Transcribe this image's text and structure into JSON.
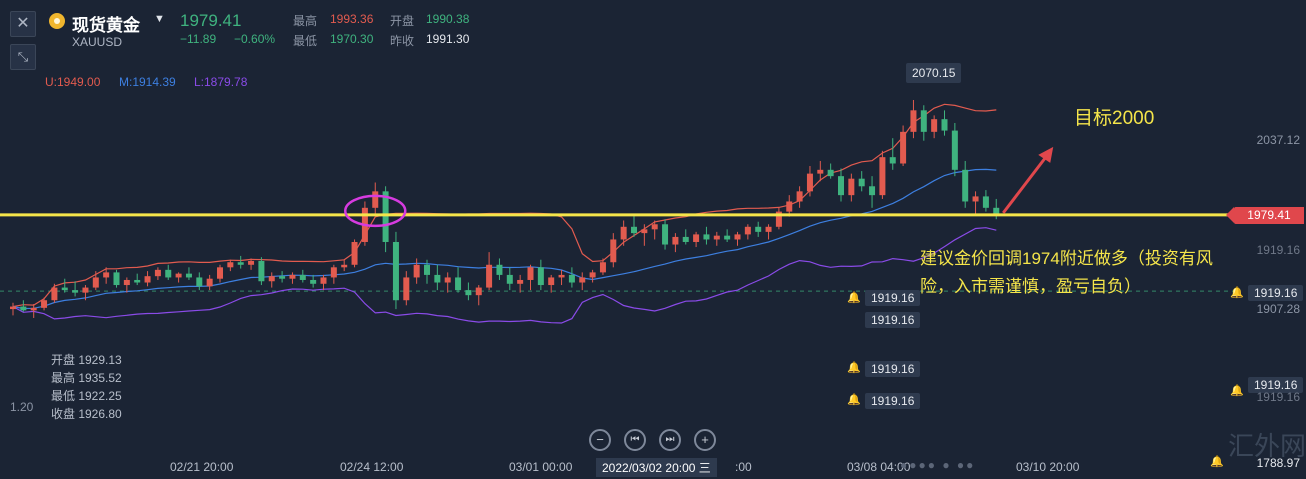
{
  "header": {
    "close_icon": "close-icon",
    "shrink_icon": "shrink-icon",
    "instrument_icon": "gold-coin-icon",
    "instrument_name": "现货黄金",
    "dropdown_icon": "caret-down-icon",
    "symbol": "XAUUSD",
    "last_price": "1979.41",
    "change": "−11.89",
    "change_pct": "−0.60%",
    "high_label": "最高",
    "high_value": "1993.36",
    "low_label": "最低",
    "low_value": "1970.30",
    "open_label": "开盘",
    "open_value": "1990.38",
    "prev_close_label": "昨收",
    "prev_close_value": "1991.30"
  },
  "bollinger": {
    "upper": "U:1949.00",
    "middle": "M:1914.39",
    "lower": "L:1879.78"
  },
  "hover_ohlc": {
    "open": "开盘 1929.13",
    "high": "最高 1935.52",
    "low": "最低 1922.25",
    "close": "收盘 1926.80"
  },
  "left_edge_value": "1.20",
  "annotations": {
    "target": "目标2000",
    "note_line1": "建议金价回调1974附近做多（投资有风",
    "note_line2": "险，入市需谨慎，盈亏自负）",
    "peak_label": "2070.15"
  },
  "alerts": {
    "value": "1919.16",
    "count": 6
  },
  "price_axis": {
    "ticks": [
      "2037.12",
      "1907.28",
      "1788.97"
    ],
    "current": "1979.41",
    "clipped_top": "1919.16",
    "clipped_bottom": "1919.16"
  },
  "time_axis": {
    "ticks": [
      "02/21 20:00",
      "02/24 12:00",
      "03/01 00:00",
      "03/08 04:00",
      "03/10 20:00"
    ],
    "partial_tick": ":00",
    "cursor_date": "2022/03/02 20:00 三"
  },
  "nav_buttons": [
    "zoom-out",
    "scroll-start",
    "scroll-end",
    "zoom-in"
  ],
  "nav_glyphs": [
    "−",
    "⏮",
    "⏭",
    "+"
  ],
  "watermark": "汇外网",
  "colors": {
    "background": "#1b2434",
    "up": "#e25b4f",
    "down": "#3fb37f",
    "upper_band": "#e25b4f",
    "middle_band": "#3d7fe0",
    "lower_band": "#8a4be8",
    "support_line": "#f5e54a",
    "highlight_circle": "#d63be0",
    "arrow": "#e0474c"
  },
  "chart_data": {
    "type": "candlestick",
    "price_scale": {
      "min": 1788.97,
      "max": 2070.15
    },
    "support_level": 1979.41,
    "reference_dashed": 1919.16,
    "candles": [
      [
        1905,
        1910,
        1900,
        1907
      ],
      [
        1907,
        1912,
        1903,
        1904
      ],
      [
        1904,
        1909,
        1898,
        1906
      ],
      [
        1906,
        1914,
        1904,
        1912
      ],
      [
        1912,
        1925,
        1910,
        1922
      ],
      [
        1922,
        1929,
        1918,
        1920
      ],
      [
        1920,
        1927,
        1915,
        1918
      ],
      [
        1918,
        1924,
        1912,
        1922
      ],
      [
        1922,
        1935,
        1920,
        1930
      ],
      [
        1930,
        1938,
        1925,
        1934
      ],
      [
        1934,
        1936,
        1922,
        1924
      ],
      [
        1924,
        1930,
        1918,
        1928
      ],
      [
        1928,
        1933,
        1924,
        1926
      ],
      [
        1926,
        1935,
        1923,
        1931
      ],
      [
        1931,
        1938,
        1928,
        1936
      ],
      [
        1936,
        1940,
        1928,
        1930
      ],
      [
        1930,
        1934,
        1926,
        1933
      ],
      [
        1933,
        1938,
        1928,
        1930
      ],
      [
        1930,
        1934,
        1920,
        1923
      ],
      [
        1923,
        1932,
        1920,
        1929
      ],
      [
        1929,
        1940,
        1926,
        1938
      ],
      [
        1938,
        1944,
        1935,
        1942
      ],
      [
        1942,
        1947,
        1937,
        1940
      ],
      [
        1940,
        1945,
        1936,
        1943
      ],
      [
        1943,
        1946,
        1924,
        1927
      ],
      [
        1927,
        1934,
        1922,
        1931
      ],
      [
        1931,
        1935,
        1926,
        1929
      ],
      [
        1929,
        1934,
        1925,
        1932
      ],
      [
        1932,
        1936,
        1926,
        1928
      ],
      [
        1928,
        1932,
        1922,
        1925
      ],
      [
        1925,
        1932,
        1920,
        1930
      ],
      [
        1930,
        1940,
        1925,
        1938
      ],
      [
        1938,
        1944,
        1935,
        1940
      ],
      [
        1940,
        1960,
        1938,
        1958
      ],
      [
        1958,
        1990,
        1955,
        1985
      ],
      [
        1985,
        2005,
        1980,
        1998
      ],
      [
        1998,
        2002,
        1950,
        1958
      ],
      [
        1958,
        1966,
        1905,
        1912
      ],
      [
        1912,
        1935,
        1908,
        1930
      ],
      [
        1930,
        1945,
        1925,
        1940
      ],
      [
        1940,
        1944,
        1925,
        1932
      ],
      [
        1932,
        1940,
        1920,
        1926
      ],
      [
        1926,
        1934,
        1918,
        1930
      ],
      [
        1930,
        1938,
        1918,
        1920
      ],
      [
        1920,
        1926,
        1912,
        1916
      ],
      [
        1916,
        1924,
        1908,
        1922
      ],
      [
        1922,
        1950,
        1920,
        1940
      ],
      [
        1940,
        1945,
        1928,
        1932
      ],
      [
        1932,
        1938,
        1920,
        1925
      ],
      [
        1925,
        1932,
        1918,
        1928
      ],
      [
        1928,
        1940,
        1920,
        1938
      ],
      [
        1938,
        1944,
        1920,
        1924
      ],
      [
        1924,
        1932,
        1918,
        1930
      ],
      [
        1930,
        1936,
        1924,
        1932
      ],
      [
        1932,
        1938,
        1922,
        1926
      ],
      [
        1926,
        1934,
        1920,
        1930
      ],
      [
        1930,
        1936,
        1926,
        1934
      ],
      [
        1934,
        1945,
        1932,
        1942
      ],
      [
        1942,
        1965,
        1938,
        1960
      ],
      [
        1960,
        1975,
        1955,
        1970
      ],
      [
        1970,
        1980,
        1962,
        1965
      ],
      [
        1965,
        1972,
        1955,
        1968
      ],
      [
        1968,
        1975,
        1960,
        1972
      ],
      [
        1972,
        1976,
        1952,
        1956
      ],
      [
        1956,
        1965,
        1950,
        1962
      ],
      [
        1962,
        1968,
        1956,
        1958
      ],
      [
        1958,
        1966,
        1954,
        1964
      ],
      [
        1964,
        1970,
        1956,
        1960
      ],
      [
        1960,
        1966,
        1955,
        1963
      ],
      [
        1963,
        1968,
        1958,
        1960
      ],
      [
        1960,
        1966,
        1955,
        1964
      ],
      [
        1964,
        1972,
        1960,
        1970
      ],
      [
        1970,
        1974,
        1962,
        1966
      ],
      [
        1966,
        1972,
        1960,
        1970
      ],
      [
        1970,
        1985,
        1968,
        1982
      ],
      [
        1982,
        1995,
        1978,
        1990
      ],
      [
        1990,
        2002,
        1985,
        1998
      ],
      [
        1998,
        2018,
        1994,
        2012
      ],
      [
        2012,
        2022,
        2006,
        2015
      ],
      [
        2015,
        2020,
        2008,
        2010
      ],
      [
        2010,
        2016,
        1990,
        1995
      ],
      [
        1995,
        2012,
        1990,
        2008
      ],
      [
        2008,
        2014,
        1998,
        2002
      ],
      [
        2002,
        2010,
        1985,
        1995
      ],
      [
        1995,
        2030,
        1992,
        2025
      ],
      [
        2025,
        2040,
        2015,
        2020
      ],
      [
        2020,
        2050,
        2018,
        2045
      ],
      [
        2045,
        2070.15,
        2040,
        2062
      ],
      [
        2062,
        2066,
        2038,
        2045
      ],
      [
        2045,
        2058,
        2040,
        2055
      ],
      [
        2055,
        2062,
        2042,
        2046
      ],
      [
        2046,
        2052,
        2010,
        2015
      ],
      [
        2015,
        2022,
        1985,
        1990
      ],
      [
        1990,
        1998,
        1980,
        1994
      ],
      [
        1994,
        1999,
        1982,
        1985
      ],
      [
        1985,
        1992,
        1976,
        1979.41
      ]
    ]
  }
}
